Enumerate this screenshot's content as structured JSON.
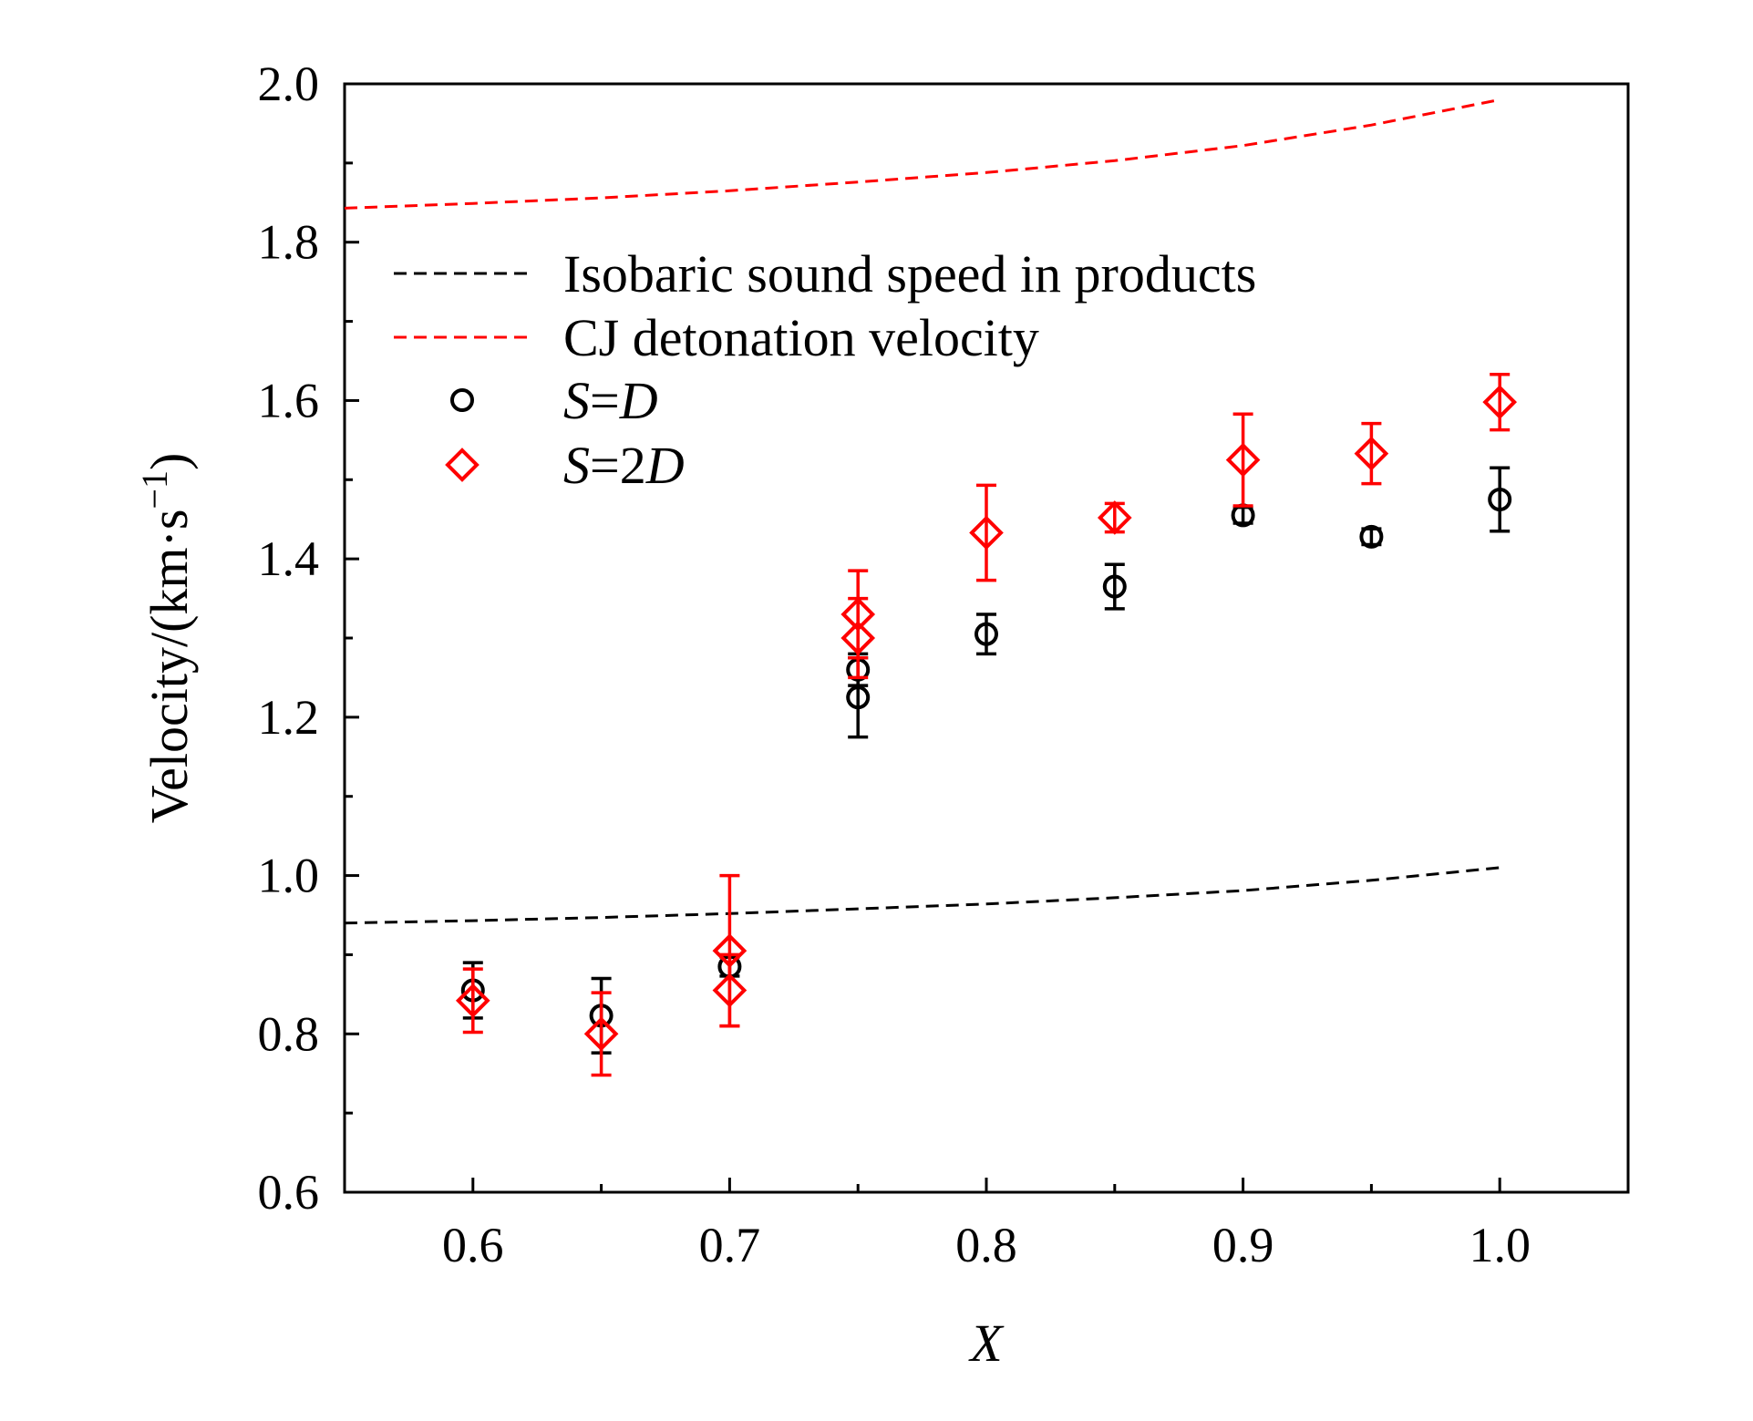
{
  "chart_data": {
    "type": "scatter",
    "title": "",
    "xlabel": "X",
    "ylabel": "Velocity/(km·s",
    "ylabel_sup": "−1",
    "ylabel_close": ")",
    "xlim": [
      0.55,
      1.05
    ],
    "ylim": [
      0.6,
      2.0
    ],
    "x_ticks": [
      0.6,
      0.7,
      0.8,
      0.9,
      1.0
    ],
    "x_tick_labels": [
      "0.6",
      "0.7",
      "0.8",
      "0.9",
      "1.0"
    ],
    "y_ticks": [
      0.6,
      0.8,
      1.0,
      1.2,
      1.4,
      1.6,
      1.8,
      2.0
    ],
    "y_tick_labels": [
      "0.6",
      "0.8",
      "1.0",
      "1.2",
      "1.4",
      "1.6",
      "1.8",
      "2.0"
    ],
    "grid": false,
    "legend_position": "upper-left",
    "lines": [
      {
        "name": "Isobaric sound speed in products",
        "color": "#000000",
        "style": "dashed",
        "x": [
          0.55,
          0.6,
          0.65,
          0.7,
          0.75,
          0.8,
          0.85,
          0.9,
          0.95,
          1.0
        ],
        "y": [
          0.94,
          0.943,
          0.947,
          0.952,
          0.958,
          0.964,
          0.972,
          0.981,
          0.994,
          1.01
        ]
      },
      {
        "name": "CJ detonation velocity",
        "color": "#ff0000",
        "style": "dashed",
        "x": [
          0.55,
          0.6,
          0.65,
          0.7,
          0.75,
          0.8,
          0.85,
          0.9,
          0.95,
          1.0
        ],
        "y": [
          1.843,
          1.849,
          1.856,
          1.865,
          1.876,
          1.888,
          1.903,
          1.922,
          1.948,
          1.98
        ]
      }
    ],
    "series": [
      {
        "name": "S=D",
        "legend_parts": [
          "S",
          "=",
          "D"
        ],
        "marker": "circle",
        "color": "#000000",
        "points": [
          {
            "x": 0.6,
            "y": 0.855,
            "err": 0.035
          },
          {
            "x": 0.65,
            "y": 0.823,
            "err": 0.047
          },
          {
            "x": 0.7,
            "y": 0.885,
            "err": 0.012
          },
          {
            "x": 0.75,
            "y": 1.26,
            "err": 0.02
          },
          {
            "x": 0.75,
            "y": 1.225,
            "err": 0.05
          },
          {
            "x": 0.8,
            "y": 1.305,
            "err": 0.025
          },
          {
            "x": 0.85,
            "y": 1.365,
            "err": 0.028
          },
          {
            "x": 0.9,
            "y": 1.455,
            "err": 0.01
          },
          {
            "x": 0.95,
            "y": 1.428,
            "err": 0.01
          },
          {
            "x": 1.0,
            "y": 1.475,
            "err": 0.04
          }
        ]
      },
      {
        "name": "S=2D",
        "legend_parts": [
          "S",
          "=2",
          "D"
        ],
        "marker": "diamond",
        "color": "#ff0000",
        "points": [
          {
            "x": 0.6,
            "y": 0.842,
            "err": 0.04
          },
          {
            "x": 0.65,
            "y": 0.8,
            "err": 0.052
          },
          {
            "x": 0.7,
            "y": 0.905,
            "err": 0.095
          },
          {
            "x": 0.7,
            "y": 0.855,
            "err": 0.045
          },
          {
            "x": 0.75,
            "y": 1.33,
            "err": 0.055
          },
          {
            "x": 0.75,
            "y": 1.3,
            "err": 0.05
          },
          {
            "x": 0.8,
            "y": 1.433,
            "err": 0.06
          },
          {
            "x": 0.85,
            "y": 1.452,
            "err": 0.018
          },
          {
            "x": 0.9,
            "y": 1.525,
            "err": 0.058
          },
          {
            "x": 0.95,
            "y": 1.533,
            "err": 0.038
          },
          {
            "x": 1.0,
            "y": 1.598,
            "err": 0.035
          }
        ]
      }
    ]
  }
}
